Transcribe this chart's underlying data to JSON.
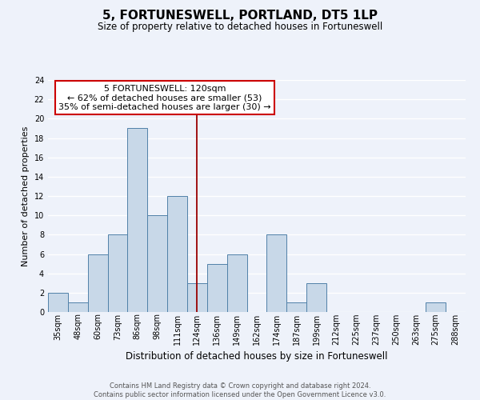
{
  "title": "5, FORTUNESWELL, PORTLAND, DT5 1LP",
  "subtitle": "Size of property relative to detached houses in Fortuneswell",
  "xlabel": "Distribution of detached houses by size in Fortuneswell",
  "ylabel": "Number of detached properties",
  "footer_line1": "Contains HM Land Registry data © Crown copyright and database right 2024.",
  "footer_line2": "Contains public sector information licensed under the Open Government Licence v3.0.",
  "bin_labels": [
    "35sqm",
    "48sqm",
    "60sqm",
    "73sqm",
    "86sqm",
    "98sqm",
    "111sqm",
    "124sqm",
    "136sqm",
    "149sqm",
    "162sqm",
    "174sqm",
    "187sqm",
    "199sqm",
    "212sqm",
    "225sqm",
    "237sqm",
    "250sqm",
    "263sqm",
    "275sqm",
    "288sqm"
  ],
  "bar_heights": [
    2,
    1,
    6,
    8,
    19,
    10,
    12,
    3,
    5,
    6,
    0,
    8,
    1,
    3,
    0,
    0,
    0,
    0,
    0,
    1,
    0
  ],
  "bar_color": "#c8d8e8",
  "bar_edge_color": "#5080a8",
  "ylim": [
    0,
    24
  ],
  "yticks": [
    0,
    2,
    4,
    6,
    8,
    10,
    12,
    14,
    16,
    18,
    20,
    22,
    24
  ],
  "vline_x_index": 7,
  "vline_color": "#990000",
  "annotation_text_line1": "5 FORTUNESWELL: 120sqm",
  "annotation_text_line2": "← 62% of detached houses are smaller (53)",
  "annotation_text_line3": "35% of semi-detached houses are larger (30) →",
  "annotation_box_edge_color": "#cc0000",
  "background_color": "#eef2fa",
  "grid_color": "#ffffff",
  "title_fontsize": 11,
  "subtitle_fontsize": 8.5,
  "ylabel_fontsize": 8,
  "xlabel_fontsize": 8.5,
  "tick_fontsize": 7,
  "annotation_fontsize": 8,
  "footer_fontsize": 6
}
